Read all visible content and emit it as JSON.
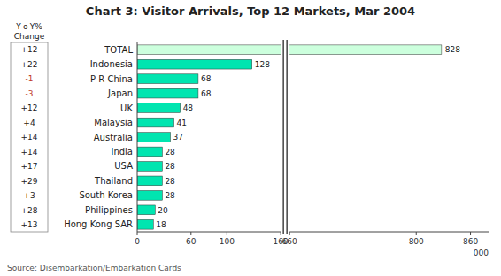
{
  "chart_data": {
    "type": "bar",
    "orientation": "horizontal",
    "title": "Chart 3: Visitor Arrivals, Top 12 Markets, Mar 2004",
    "categories": [
      "TOTAL",
      "Indonesia",
      "P R China",
      "Japan",
      "UK",
      "Malaysia",
      "Australia",
      "India",
      "USA",
      "Thailand",
      "South Korea",
      "Philippines",
      "Hong Kong SAR"
    ],
    "values": [
      828,
      128,
      68,
      68,
      48,
      41,
      37,
      28,
      28,
      28,
      28,
      20,
      18
    ],
    "colors": [
      "#ccffdd",
      "#00e5b0",
      "#00e5b0",
      "#00e5b0",
      "#00e5b0",
      "#00e5b0",
      "#00e5b0",
      "#00e5b0",
      "#00e5b0",
      "#00e5b0",
      "#00e5b0",
      "#00e5b0",
      "#00e5b0"
    ],
    "data_labels": true,
    "xlim": [
      0,
      880
    ],
    "x_break": [
      160,
      660
    ],
    "xticks": [
      0,
      60,
      100,
      160,
      660,
      800,
      860
    ],
    "xlabel": "000",
    "grid": false,
    "yoy_header": [
      "Y-o-Y%",
      "Change"
    ],
    "yoy_changes": [
      12,
      22,
      -1,
      -3,
      12,
      4,
      14,
      14,
      17,
      29,
      3,
      28,
      13
    ],
    "yoy_change_labels": [
      "+12",
      "+22",
      "-1",
      "-3",
      "+12",
      "+4",
      "+14",
      "+14",
      "+17",
      "+29",
      "+3",
      "+28",
      "+13"
    ],
    "source": "Source: Disembarkation/Embarkation Cards"
  }
}
